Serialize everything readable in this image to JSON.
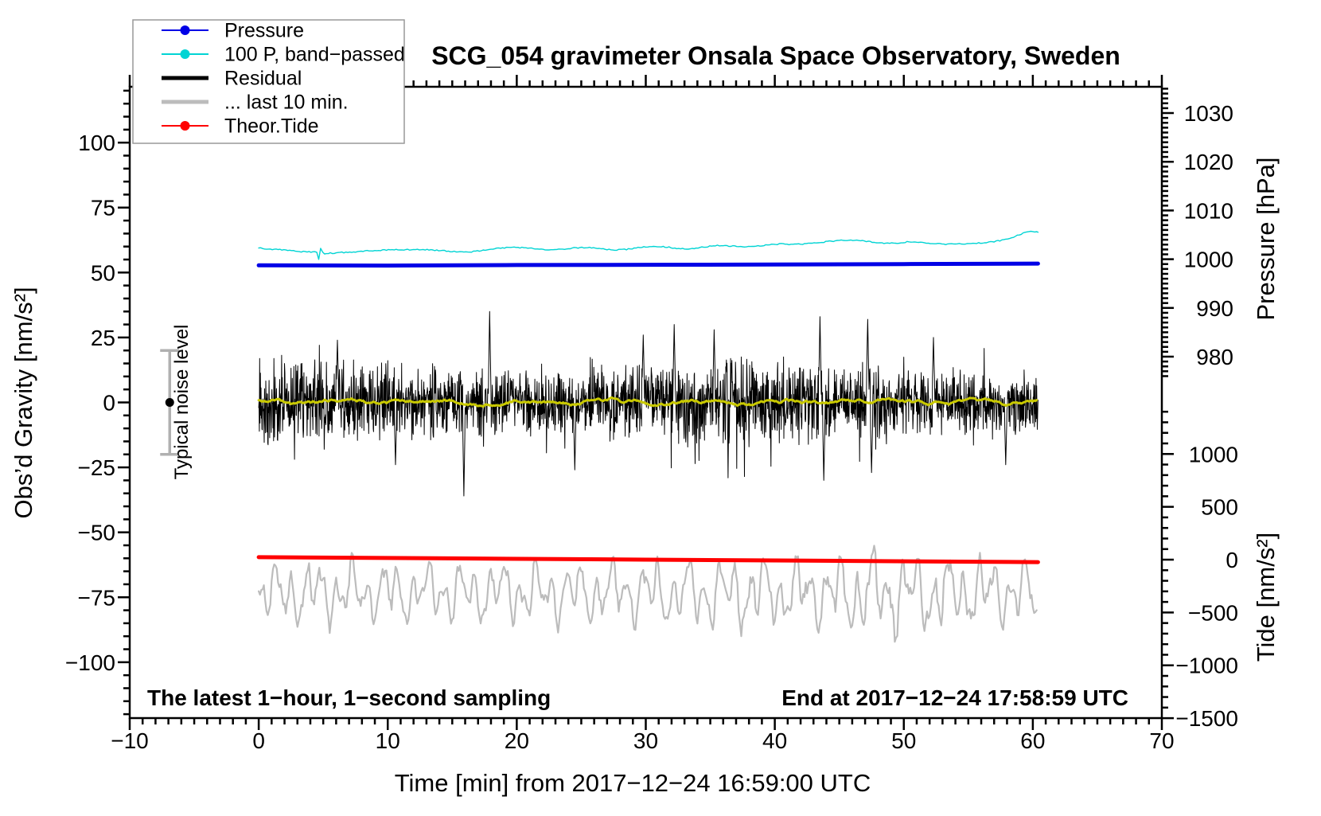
{
  "chart_data": {
    "type": "line",
    "title": "SCG_054 gravimeter Onsala Space Observatory, Sweden",
    "x_axis": {
      "label": "Time [min] from 2017−12−24 16:59:00 UTC",
      "min": -10,
      "max": 70,
      "minor_step": 1,
      "major_ticks": [
        -10,
        0,
        10,
        20,
        30,
        40,
        50,
        60,
        70
      ],
      "major_labels": [
        "−10",
        "0",
        "10",
        "20",
        "30",
        "40",
        "50",
        "60",
        "70"
      ]
    },
    "y_axis_left": {
      "label": "Obs’d Gravity [nm/s²]",
      "min": -121.5,
      "max": 121.5,
      "minor_step": 5,
      "major_ticks": [
        -100,
        -75,
        -50,
        -25,
        0,
        25,
        50,
        75,
        100
      ],
      "major_labels": [
        "−100",
        "−75",
        "−50",
        "−25",
        "0",
        "25",
        "50",
        "75",
        "100"
      ]
    },
    "y_axis_right_pressure": {
      "label": "Pressure [hPa]",
      "minor_step": 1,
      "shown_range": [
        976,
        1035
      ],
      "major_ticks": [
        980,
        990,
        1000,
        1010,
        1020,
        1030
      ],
      "major_labels": [
        "980",
        "990",
        "1000",
        "1010",
        "1020",
        "1030"
      ]
    },
    "y_axis_right_tide": {
      "label": "Tide [nm/s²]",
      "minor_step": 100,
      "shown_range": [
        -1400,
        1400
      ],
      "major_ticks": [
        1000,
        500,
        0,
        -500,
        -1000,
        -1500
      ],
      "major_labels": [
        "1000",
        "500",
        "0",
        "−500",
        "−1000",
        "−1500"
      ]
    },
    "annotations": {
      "bottom_left": "The latest 1−hour, 1−second sampling",
      "bottom_right": "End at 2017−12−24 17:58:59 UTC"
    },
    "noise_marker": {
      "label": "Typical noise level",
      "x": -6.9,
      "center": 0,
      "half_range": 20
    },
    "x_data_range": [
      0,
      60.4
    ],
    "series": [
      {
        "name": "... last 10 min.",
        "axis": "tide",
        "color": "#bcbcbc",
        "width": 2.2,
        "render": "wavy-noise",
        "noise": {
          "mean": -310,
          "amp_main": 175,
          "amp_slow": 120,
          "amp_fast": 70,
          "jitter": 120,
          "clamp": [
            -800,
            470
          ],
          "step": 0.1,
          "boost_center": 49,
          "boost_width": 6,
          "boost_gain": 0.35
        }
      },
      {
        "name": "Theor.Tide",
        "axis": "tide",
        "color": "#ff0000",
        "width": 5,
        "render": "line",
        "points": [
          [
            0,
            23
          ],
          [
            15,
            12
          ],
          [
            30,
            0
          ],
          [
            45,
            -11
          ],
          [
            60.4,
            -23
          ]
        ]
      },
      {
        "name": "100 P, band−passed",
        "axis": "gravity",
        "color": "#00d4d4",
        "width": 1.4,
        "render": "interp-jitter",
        "jitter": 0.22,
        "step": 0.15,
        "points": [
          [
            0,
            59.4
          ],
          [
            0.8,
            59.1
          ],
          [
            1.6,
            58.8
          ],
          [
            2.4,
            58.5
          ],
          [
            3.2,
            58.1
          ],
          [
            4.0,
            57.9
          ],
          [
            4.5,
            57.9
          ],
          [
            4.65,
            55.0
          ],
          [
            4.8,
            59.5
          ],
          [
            5.0,
            57.3
          ],
          [
            5.6,
            57.5
          ],
          [
            6.5,
            57.7
          ],
          [
            7.5,
            57.9
          ],
          [
            8.5,
            58.4
          ],
          [
            9.5,
            58.6
          ],
          [
            10.5,
            58.8
          ],
          [
            11.5,
            58.8
          ],
          [
            12.5,
            58.9
          ],
          [
            13.5,
            58.6
          ],
          [
            14.5,
            58.3
          ],
          [
            15.5,
            57.9
          ],
          [
            16.5,
            58.0
          ],
          [
            17.5,
            58.6
          ],
          [
            18.5,
            59.3
          ],
          [
            19.5,
            59.7
          ],
          [
            20.5,
            59.6
          ],
          [
            21.5,
            59.1
          ],
          [
            22.5,
            58.7
          ],
          [
            23.5,
            59.0
          ],
          [
            24.5,
            59.5
          ],
          [
            25.5,
            59.6
          ],
          [
            26.5,
            59.2
          ],
          [
            27.5,
            58.7
          ],
          [
            28.5,
            58.9
          ],
          [
            29.5,
            59.6
          ],
          [
            30.5,
            60.1
          ],
          [
            31.5,
            59.9
          ],
          [
            32.5,
            59.3
          ],
          [
            33.5,
            59.1
          ],
          [
            34.5,
            59.8
          ],
          [
            35.5,
            60.4
          ],
          [
            36.5,
            60.2
          ],
          [
            37.5,
            59.9
          ],
          [
            38.5,
            60.2
          ],
          [
            39.5,
            60.6
          ],
          [
            40.5,
            61.0
          ],
          [
            41.5,
            60.8
          ],
          [
            42.5,
            61.1
          ],
          [
            43.5,
            61.6
          ],
          [
            44.5,
            62.1
          ],
          [
            45.5,
            62.5
          ],
          [
            46.5,
            62.4
          ],
          [
            47.5,
            61.8
          ],
          [
            48.5,
            61.3
          ],
          [
            49.5,
            61.4
          ],
          [
            50.5,
            61.9
          ],
          [
            51.5,
            61.6
          ],
          [
            52.5,
            61.1
          ],
          [
            53.5,
            60.9
          ],
          [
            54.5,
            61.0
          ],
          [
            55.5,
            61.2
          ],
          [
            56.5,
            61.6
          ],
          [
            57.5,
            62.3
          ],
          [
            58.5,
            63.6
          ],
          [
            59.3,
            65.2
          ],
          [
            59.8,
            66.0
          ],
          [
            60.4,
            65.5
          ]
        ]
      },
      {
        "name": "Pressure",
        "axis": "pressure",
        "color": "#0000e6",
        "width": 5,
        "render": "line",
        "points": [
          [
            0,
            998.75
          ],
          [
            10,
            998.7
          ],
          [
            20,
            998.8
          ],
          [
            30,
            998.85
          ],
          [
            40,
            998.9
          ],
          [
            50,
            999.0
          ],
          [
            60.4,
            999.1
          ]
        ]
      },
      {
        "name": "Residual",
        "axis": "gravity",
        "color": "#000000",
        "width": 1,
        "render": "dense-noise",
        "noise": {
          "mean": 0,
          "scale": 16,
          "step": 0.025,
          "tail_prob": 0.05,
          "tail_gain": 1.7,
          "spikes": [
            [
              6.1,
              24
            ],
            [
              10.6,
              -24
            ],
            [
              15.9,
              -36
            ],
            [
              17.9,
              35
            ],
            [
              24.5,
              -26
            ],
            [
              29.8,
              26
            ],
            [
              32.2,
              30
            ],
            [
              35.3,
              28
            ],
            [
              43.5,
              33
            ],
            [
              43.8,
              -30
            ],
            [
              47.2,
              32
            ],
            [
              47.5,
              -27
            ],
            [
              52.3,
              25
            ],
            [
              57.9,
              -24
            ]
          ]
        }
      },
      {
        "name": "Residual low-pass",
        "axis": "gravity",
        "color": "#c9c900",
        "width": 3,
        "render": "smooth-noise",
        "in_legend": false,
        "noise": {
          "mean": 0,
          "amp": 1.6,
          "step": 0.1
        }
      }
    ]
  },
  "legend": {
    "items": [
      {
        "label": "Pressure",
        "color": "#0000e6",
        "marker": true,
        "thick": false
      },
      {
        "label": "100 P, band−passed",
        "color": "#00d4d4",
        "marker": true,
        "thick": false
      },
      {
        "label": "Residual",
        "color": "#000000",
        "marker": false,
        "thick": true
      },
      {
        "label": "... last 10 min.",
        "color": "#bcbcbc",
        "marker": false,
        "thick": true
      },
      {
        "label": "Theor.Tide",
        "color": "#ff0000",
        "marker": true,
        "thick": false
      }
    ]
  }
}
